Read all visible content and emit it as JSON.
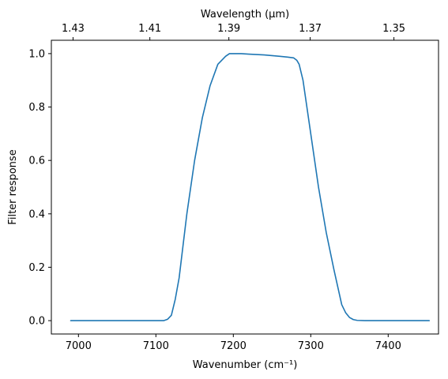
{
  "chart_data": {
    "type": "line",
    "title": "",
    "xlabel": "Wavenumber (cm⁻¹)",
    "ylabel": "Filter response",
    "secondary_xlabel": "Wavelength (μm)",
    "xlim": [
      6965,
      7465
    ],
    "ylim": [
      -0.05,
      1.05
    ],
    "x_ticks": [
      7000,
      7100,
      7200,
      7300,
      7400
    ],
    "y_ticks": [
      0.0,
      0.2,
      0.4,
      0.6,
      0.8,
      1.0
    ],
    "y_tick_labels": [
      "0.0",
      "0.2",
      "0.4",
      "0.6",
      "0.8",
      "1.0"
    ],
    "secondary_x_ticks": [
      1.43,
      1.41,
      1.39,
      1.37,
      1.35
    ],
    "grid": false,
    "series": [
      {
        "color": "#1f77b4",
        "x": [
          6990,
          7050,
          7100,
          7110,
          7115,
          7120,
          7125,
          7130,
          7135,
          7140,
          7150,
          7160,
          7170,
          7180,
          7190,
          7195,
          7200,
          7205,
          7210,
          7220,
          7240,
          7260,
          7270,
          7278,
          7282,
          7285,
          7290,
          7300,
          7310,
          7320,
          7330,
          7340,
          7345,
          7350,
          7355,
          7360,
          7370,
          7400,
          7453
        ],
        "y": [
          0.0,
          0.0,
          0.0,
          0.0,
          0.005,
          0.02,
          0.08,
          0.16,
          0.28,
          0.4,
          0.6,
          0.76,
          0.88,
          0.96,
          0.99,
          1.0,
          1.0,
          1.0,
          1.0,
          0.998,
          0.995,
          0.99,
          0.987,
          0.984,
          0.975,
          0.96,
          0.9,
          0.7,
          0.5,
          0.33,
          0.19,
          0.06,
          0.03,
          0.012,
          0.004,
          0.001,
          0.0,
          0.0,
          0.0
        ]
      }
    ]
  }
}
